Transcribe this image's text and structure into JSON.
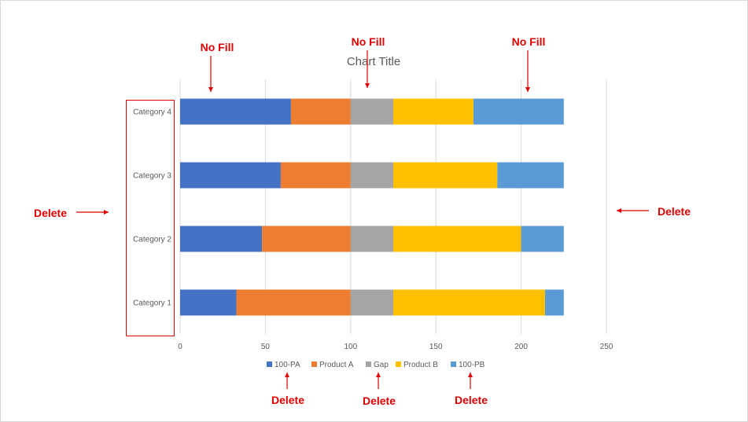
{
  "chart_data": {
    "type": "bar",
    "orientation": "horizontal",
    "stacked": true,
    "title": "Chart Title",
    "categories": [
      "Category 1",
      "Category 2",
      "Category 3",
      "Category 4"
    ],
    "series": [
      {
        "name": "100-PA",
        "color": "#4472C4",
        "values": [
          33,
          48,
          59,
          65
        ]
      },
      {
        "name": "Product A",
        "color": "#ED7D31",
        "values": [
          67,
          52,
          41,
          35
        ]
      },
      {
        "name": "Gap",
        "color": "#A5A5A5",
        "values": [
          25,
          25,
          25,
          25
        ]
      },
      {
        "name": "Product B",
        "color": "#FFC000",
        "values": [
          89,
          75,
          61,
          47
        ]
      },
      {
        "name": "100-PB",
        "color": "#5B9BD5",
        "values": [
          11,
          25,
          39,
          53
        ]
      }
    ],
    "x_ticks": [
      "0",
      "50",
      "100",
      "150",
      "200",
      "250"
    ],
    "xlim": [
      0,
      250
    ],
    "grid": true,
    "legend_position": "bottom"
  },
  "annotations": {
    "no_fill_label": "No Fill",
    "delete_label": "Delete",
    "color": "#E00000"
  }
}
